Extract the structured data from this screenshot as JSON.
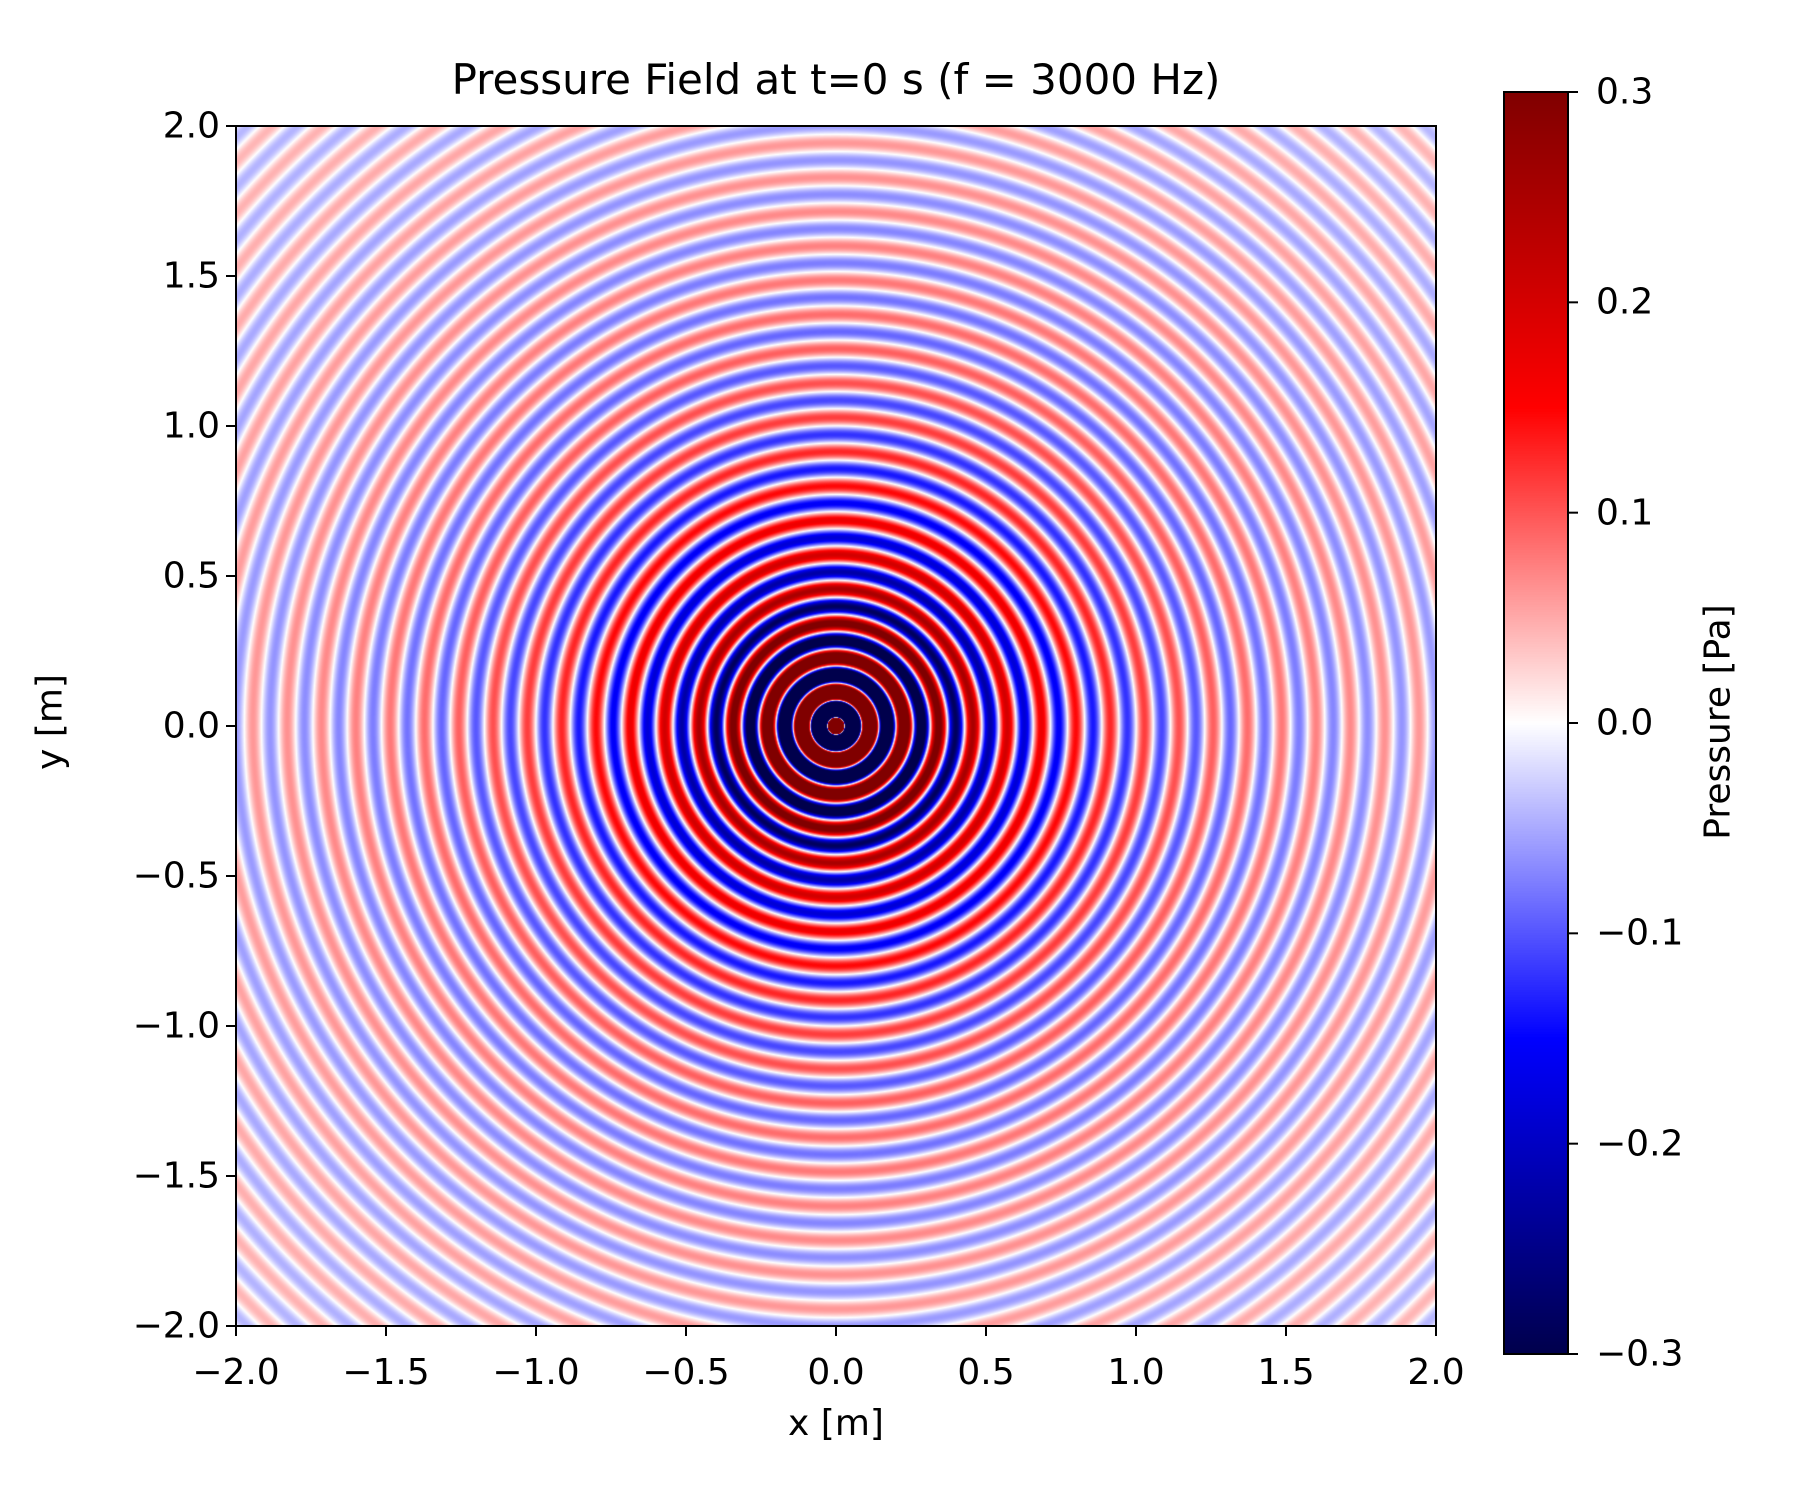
{
  "chart_data": {
    "type": "heatmap",
    "title": "Pressure Field at t=0 s (f = 3000 Hz)",
    "xlabel": "x [m]",
    "ylabel": "y [m]",
    "xlim": [
      -2.0,
      2.0
    ],
    "ylim": [
      -2.0,
      2.0
    ],
    "x_ticks": [
      -2.0,
      -1.5,
      -1.0,
      -0.5,
      0.0,
      0.5,
      1.0,
      1.5,
      2.0
    ],
    "x_tick_labels": [
      "−2.0",
      "−1.5",
      "−1.0",
      "−0.5",
      "0.0",
      "0.5",
      "1.0",
      "1.5",
      "2.0"
    ],
    "y_ticks": [
      2.0,
      1.5,
      1.0,
      0.5,
      0.0,
      -0.5,
      -1.0,
      -1.5,
      -2.0
    ],
    "y_tick_labels": [
      "2.0",
      "1.5",
      "1.0",
      "0.5",
      "0.0",
      "−0.5",
      "−1.0",
      "−1.5",
      "−2.0"
    ],
    "colorbar": {
      "label": "Pressure [Pa]",
      "range": [
        -0.3,
        0.3
      ],
      "ticks": [
        0.3,
        0.2,
        0.1,
        0.0,
        -0.1,
        -0.2,
        -0.3
      ],
      "tick_labels": [
        "0.3",
        "0.2",
        "0.1",
        "0.0",
        "−0.1",
        "−0.2",
        "−0.3"
      ],
      "colormap": "seismic"
    },
    "field": {
      "pattern": "concentric circular waves centered at origin",
      "center": [
        0.0,
        0.0
      ],
      "frequency_hz": 3000,
      "time_s": 0
    },
    "grid": false
  }
}
